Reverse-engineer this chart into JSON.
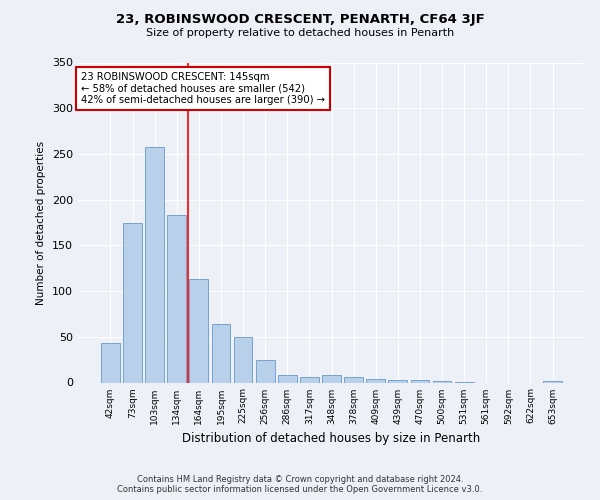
{
  "title": "23, ROBINSWOOD CRESCENT, PENARTH, CF64 3JF",
  "subtitle": "Size of property relative to detached houses in Penarth",
  "xlabel": "Distribution of detached houses by size in Penarth",
  "ylabel": "Number of detached properties",
  "footer_line1": "Contains HM Land Registry data © Crown copyright and database right 2024.",
  "footer_line2": "Contains public sector information licensed under the Open Government Licence v3.0.",
  "categories": [
    "42sqm",
    "73sqm",
    "103sqm",
    "134sqm",
    "164sqm",
    "195sqm",
    "225sqm",
    "256sqm",
    "286sqm",
    "317sqm",
    "348sqm",
    "378sqm",
    "409sqm",
    "439sqm",
    "470sqm",
    "500sqm",
    "531sqm",
    "561sqm",
    "592sqm",
    "622sqm",
    "653sqm"
  ],
  "values": [
    43,
    175,
    258,
    183,
    113,
    64,
    50,
    25,
    8,
    6,
    8,
    6,
    4,
    3,
    3,
    2,
    1,
    0,
    0,
    0,
    2
  ],
  "bar_color": "#b8d0ea",
  "bar_edgecolor": "#6699cc",
  "background_color": "#edf1f7",
  "grid_color": "#ffffff",
  "red_line_x": 3.5,
  "annotation_text": "23 ROBINSWOOD CRESCENT: 145sqm\n← 58% of detached houses are smaller (542)\n42% of semi-detached houses are larger (390) →",
  "annotation_box_color": "#ffffff",
  "annotation_box_edgecolor": "#cc0000",
  "ylim": [
    0,
    350
  ],
  "yticks": [
    0,
    50,
    100,
    150,
    200,
    250,
    300,
    350
  ]
}
